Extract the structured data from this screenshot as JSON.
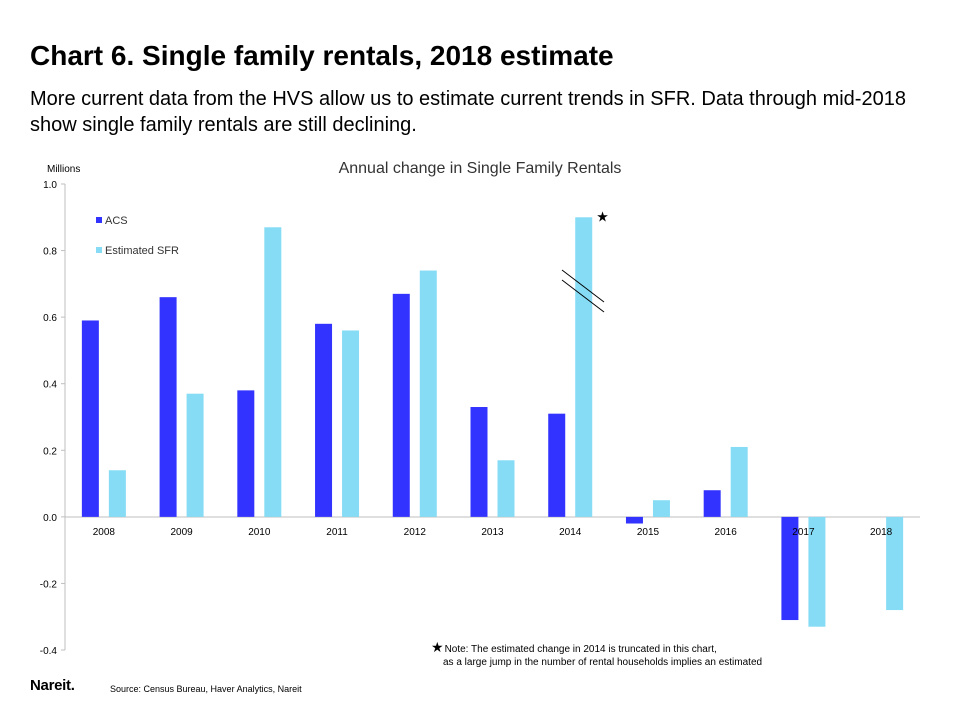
{
  "slide": {
    "title": "Chart 6. Single family rentals, 2018 estimate",
    "subtitle": "More current data from the HVS allow us to estimate current trends in SFR. Data through mid-2018 show single family rentals are still declining."
  },
  "chart_data": {
    "type": "bar",
    "title": "Annual change in Single Family Rentals",
    "ylabel": "Millions",
    "xlabel": "",
    "ylim": [
      -0.4,
      1.0
    ],
    "yticks": [
      "1.0",
      "0.8",
      "0.6",
      "0.4",
      "0.2",
      "0.0",
      "-0.2",
      "-0.4"
    ],
    "ytick_values": [
      1.0,
      0.8,
      0.6,
      0.4,
      0.2,
      0.0,
      -0.2,
      -0.4
    ],
    "categories": [
      "2008",
      "2009",
      "2010",
      "2011",
      "2012",
      "2013",
      "2014",
      "2015",
      "2016",
      "2017",
      "2018"
    ],
    "series": [
      {
        "name": "ACS",
        "color": "#3333ff",
        "values": [
          0.59,
          0.66,
          0.38,
          0.58,
          0.67,
          0.33,
          0.31,
          -0.02,
          0.08,
          -0.31,
          null
        ]
      },
      {
        "name": "Estimated SFR",
        "color": "#86dcf5",
        "values": [
          0.14,
          0.37,
          0.87,
          0.56,
          0.74,
          0.17,
          0.9,
          0.05,
          0.21,
          -0.33,
          -0.28
        ]
      }
    ],
    "annotation_marker": "★",
    "legend_position": "top-left",
    "grid": false
  },
  "footer": {
    "logo": "Nareit.",
    "source": "Source: Census Bureau, Haver Analytics, Nareit",
    "note_star": "★",
    "note_line1": "Note: The estimated change in 2014 is truncated in this chart,",
    "note_line2": "as a large jump in the number of rental households implies an estimated"
  }
}
